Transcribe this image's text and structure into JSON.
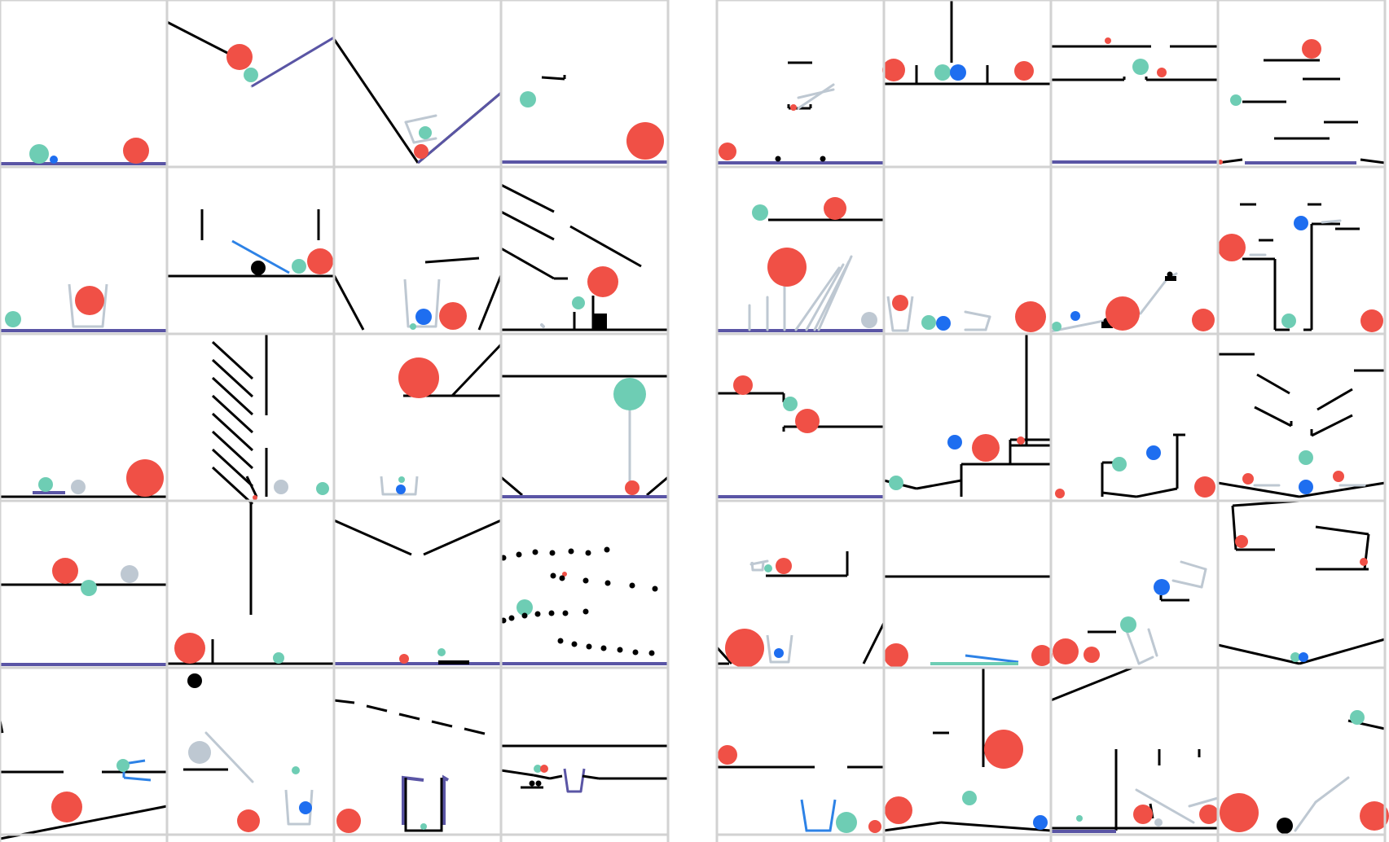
{
  "figure": {
    "panels": [
      "left-grid",
      "right-grid"
    ],
    "grid_rows": 5,
    "grid_cols": 4,
    "colors": {
      "red_ball": "#F05046",
      "green_ball": "#6ECDB4",
      "blue_ball": "#1E6EF0",
      "gray_ball": "#BEC8D2",
      "black": "#000000",
      "floor_purple": "#5A55A5",
      "cup_gray": "#BEC8D2",
      "blue_bar": "#2D82E6",
      "grid_line": "#D2D2D2"
    }
  }
}
